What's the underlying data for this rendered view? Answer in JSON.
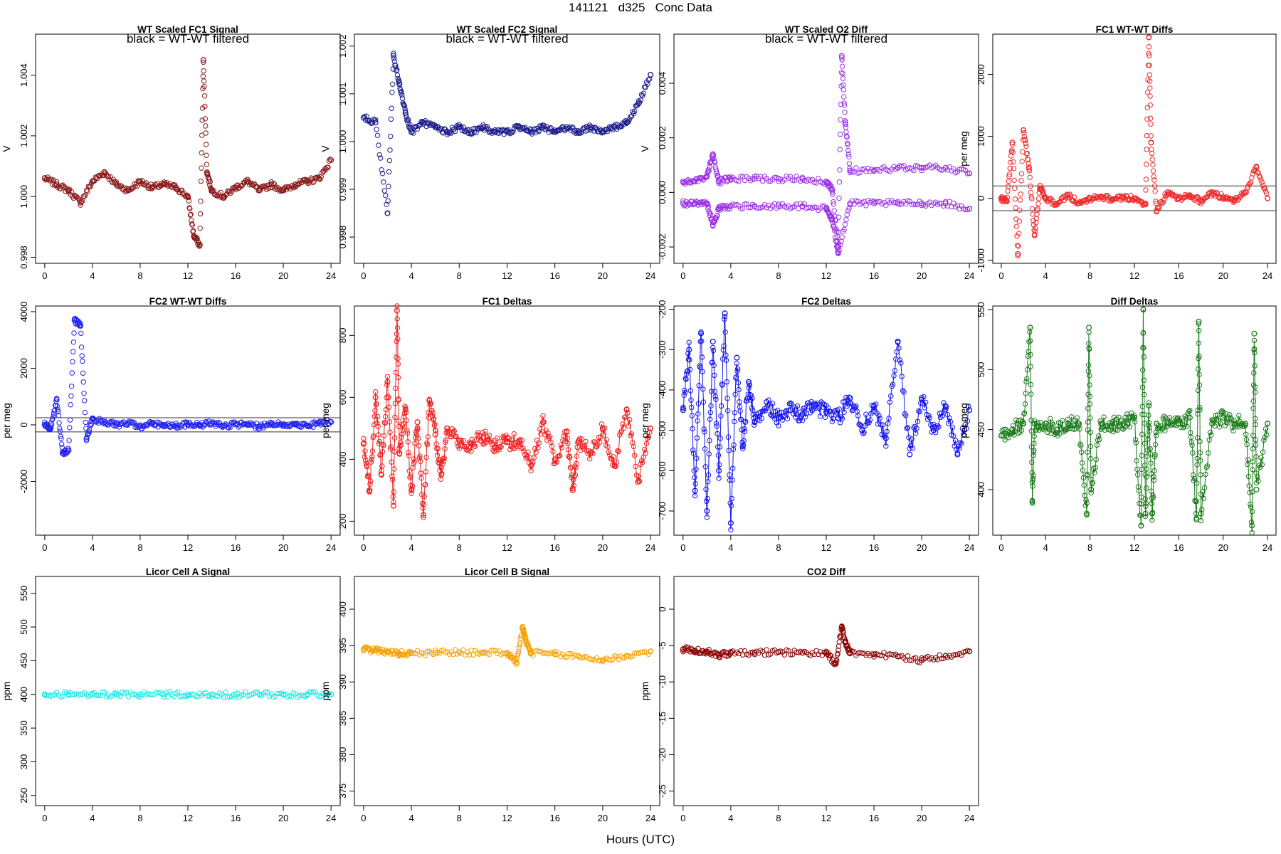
{
  "figure": {
    "title": "141121   d325   Conc Data",
    "xlabel": "Hours (UTC)"
  },
  "chart_data": [
    {
      "id": "wt-fc1",
      "type": "scatter",
      "title": "WT Scaled FC1 Signal",
      "annotation": "black = WT-WT filtered",
      "xlabel": "",
      "ylabel": "V",
      "xlim": [
        0,
        24
      ],
      "ylim": [
        0.9978,
        1.00535
      ],
      "xticks": [
        0,
        4,
        8,
        12,
        16,
        20,
        24
      ],
      "yticks": [
        0.998,
        1.0,
        1.002,
        1.004
      ],
      "ytick_labels": [
        "0.998",
        "1.000",
        "1.002",
        "1.004"
      ],
      "grid": false,
      "series": [
        {
          "color": "#8b1a1a",
          "style": "points",
          "x": [
            0,
            1,
            2,
            3,
            4,
            5,
            6,
            7,
            8,
            9,
            10,
            11,
            12,
            12.5,
            13,
            13.3,
            13.6,
            14,
            15,
            16,
            17,
            18,
            19,
            20,
            21,
            22,
            23,
            24
          ],
          "y": [
            1.0006,
            1.0004,
            1.0002,
            0.9998,
            1.0005,
            1.0008,
            1.0004,
            1.0002,
            1.0005,
            1.0003,
            1.0004,
            1.0003,
            1.0,
            0.9987,
            0.9984,
            1.0045,
            1.0008,
            1.0002,
            1.0,
            1.0003,
            1.0005,
            1.0002,
            1.0004,
            1.0002,
            1.0004,
            1.0005,
            1.0006,
            1.0012
          ]
        }
      ]
    },
    {
      "id": "wt-fc2",
      "type": "scatter",
      "title": "WT Scaled FC2 Signal",
      "annotation": "black = WT-WT filtered",
      "xlabel": "",
      "ylabel": "V",
      "xlim": [
        0,
        24
      ],
      "ylim": [
        0.99745,
        1.00225
      ],
      "xticks": [
        0,
        4,
        8,
        12,
        16,
        20,
        24
      ],
      "yticks": [
        0.998,
        0.999,
        1.0,
        1.001,
        1.002
      ],
      "ytick_labels": [
        "0.998",
        "0.999",
        "1.000",
        "1.001",
        "1.002"
      ],
      "grid": false,
      "series": [
        {
          "color": "#1c1c8c",
          "style": "points",
          "x": [
            0,
            1,
            2,
            2.5,
            3,
            3.5,
            4,
            5,
            6,
            7,
            8,
            9,
            10,
            11,
            12,
            13,
            14,
            15,
            16,
            17,
            18,
            19,
            20,
            21,
            22,
            23,
            24
          ],
          "y": [
            1.0005,
            1.0004,
            0.9985,
            1.0018,
            1.0012,
            1.0006,
            1.0002,
            1.0004,
            1.0003,
            1.0002,
            1.0003,
            1.0002,
            1.0003,
            1.0002,
            1.0002,
            1.0003,
            1.0002,
            1.0003,
            1.0002,
            1.0003,
            1.0002,
            1.0003,
            1.0002,
            1.0003,
            1.0004,
            1.0008,
            1.0014
          ]
        }
      ]
    },
    {
      "id": "wt-o2-diff",
      "type": "scatter",
      "title": "WT Scaled O2 Diff",
      "annotation": "black = WT-WT filtered",
      "xlabel": "",
      "ylabel": "V",
      "xlim": [
        0,
        24
      ],
      "ylim": [
        -0.0026,
        0.0058
      ],
      "xticks": [
        0,
        4,
        8,
        12,
        16,
        20,
        24
      ],
      "yticks": [
        -0.002,
        0.0,
        0.002,
        0.004
      ],
      "ytick_labels": [
        "-0.002",
        "0.000",
        "0.002",
        "0.004"
      ],
      "grid": false,
      "series": [
        {
          "name": "",
          "color": "#9b30e6",
          "style": "points",
          "x": [
            0,
            1,
            2,
            2.5,
            3,
            4,
            6,
            8,
            10,
            12,
            12.5,
            13,
            13.3,
            13.6,
            14,
            16,
            18,
            20,
            22,
            24
          ],
          "y": [
            0.0004,
            0.0004,
            0.0006,
            0.0014,
            0.0004,
            0.0005,
            0.0005,
            0.0005,
            0.0005,
            0.0004,
            0.0001,
            -0.002,
            0.005,
            0.0025,
            0.0008,
            0.0008,
            0.0009,
            0.0009,
            0.0009,
            0.0007
          ]
        },
        {
          "name": "",
          "color": "#9b30e6",
          "style": "points",
          "x": [
            0,
            1,
            2,
            2.5,
            3,
            4,
            6,
            8,
            10,
            12,
            12.5,
            13,
            14,
            16,
            18,
            20,
            22,
            24
          ],
          "y": [
            -0.0004,
            -0.0004,
            -0.0004,
            -0.0012,
            -0.0006,
            -0.0005,
            -0.0005,
            -0.0005,
            -0.0005,
            -0.0006,
            -0.001,
            -0.0022,
            -0.0004,
            -0.0004,
            -0.0004,
            -0.0004,
            -0.0004,
            -0.0006
          ]
        }
      ]
    },
    {
      "id": "fc1-wtwt",
      "type": "scatter",
      "title": "FC1 WT-WT Diffs",
      "xlabel": "",
      "ylabel": "per meg",
      "xlim": [
        0,
        24
      ],
      "ylim": [
        -1050,
        2650
      ],
      "xticks": [
        0,
        4,
        8,
        12,
        16,
        20,
        24
      ],
      "yticks": [
        -1000,
        0,
        1000,
        2000
      ],
      "ytick_labels": [
        "-1000",
        "0",
        "1000",
        "2000"
      ],
      "grid": false,
      "hlines": [
        200,
        -200
      ],
      "series": [
        {
          "color": "#ee2a2a",
          "style": "points",
          "x": [
            0,
            0.5,
            1,
            1.5,
            2,
            2.5,
            3,
            3.5,
            4,
            5,
            6,
            7,
            8,
            9,
            10,
            11,
            12,
            13,
            13.3,
            13.5,
            14,
            15,
            16,
            17,
            18,
            19,
            20,
            21,
            22,
            23,
            24
          ],
          "y": [
            0,
            -50,
            900,
            -900,
            1100,
            500,
            -600,
            200,
            0,
            -100,
            50,
            -80,
            0,
            30,
            -20,
            10,
            0,
            -100,
            2600,
            900,
            -200,
            100,
            0,
            50,
            -50,
            80,
            20,
            -30,
            100,
            500,
            0
          ]
        }
      ]
    },
    {
      "id": "fc2-wtwt",
      "type": "scatter",
      "title": "FC2 WT-WT Diffs",
      "xlabel": "",
      "ylabel": "per meg",
      "xlim": [
        0,
        24
      ],
      "ylim": [
        -3900,
        4200
      ],
      "xticks": [
        0,
        4,
        8,
        12,
        16,
        20,
        24
      ],
      "yticks": [
        -2000,
        0,
        2000,
        4000
      ],
      "ytick_labels": [
        "-2000",
        "0",
        "2000",
        "4000"
      ],
      "grid": false,
      "hlines": [
        250,
        -250
      ],
      "series": [
        {
          "color": "#2222ee",
          "style": "points",
          "x": [
            0,
            0.5,
            1,
            1.5,
            2,
            2.5,
            3,
            3.5,
            4,
            5,
            6,
            7,
            8,
            9,
            10,
            11,
            12,
            13,
            14,
            15,
            16,
            17,
            18,
            19,
            20,
            21,
            22,
            23,
            24
          ],
          "y": [
            0,
            -100,
            900,
            -1000,
            -900,
            3700,
            3500,
            -500,
            200,
            100,
            0,
            50,
            -50,
            30,
            0,
            -20,
            10,
            0,
            50,
            -30,
            20,
            0,
            -50,
            40,
            0,
            30,
            -20,
            50,
            100
          ]
        }
      ]
    },
    {
      "id": "fc1-deltas",
      "type": "line",
      "title": "FC1 Deltas",
      "xlabel": "",
      "ylabel": "per meg",
      "xlim": [
        0,
        24
      ],
      "ylim": [
        155,
        895
      ],
      "xticks": [
        0,
        4,
        8,
        12,
        16,
        20,
        24
      ],
      "yticks": [
        200,
        400,
        600,
        800
      ],
      "ytick_labels": [
        "200",
        "400",
        "600",
        "800"
      ],
      "grid": false,
      "series": [
        {
          "color": "#ee2020",
          "style": "line+points",
          "x": [
            0,
            0.5,
            1,
            1.5,
            2,
            2.5,
            2.8,
            3,
            3.5,
            4,
            4.5,
            5,
            5.5,
            6,
            6.5,
            7,
            8,
            9,
            10,
            11,
            12,
            13,
            14,
            15,
            16,
            17,
            17.5,
            18,
            19,
            20,
            21,
            22,
            23,
            24
          ],
          "y": [
            450,
            300,
            600,
            350,
            650,
            250,
            880,
            420,
            560,
            300,
            520,
            220,
            590,
            480,
            350,
            500,
            460,
            450,
            470,
            440,
            455,
            460,
            380,
            520,
            400,
            490,
            300,
            460,
            420,
            500,
            380,
            560,
            330,
            500
          ]
        }
      ]
    },
    {
      "id": "fc2-deltas",
      "type": "line",
      "title": "FC2 Deltas",
      "xlabel": "",
      "ylabel": "per meg",
      "xlim": [
        0,
        24
      ],
      "ylim": [
        -760,
        -192
      ],
      "xticks": [
        0,
        4,
        8,
        12,
        16,
        20,
        24
      ],
      "yticks": [
        -700,
        -600,
        -500,
        -400,
        -300,
        -200
      ],
      "ytick_labels": [
        "-700",
        "-600",
        "-500",
        "-400",
        "-300",
        "-200"
      ],
      "grid": false,
      "series": [
        {
          "color": "#1414ee",
          "style": "line+points",
          "x": [
            0,
            0.5,
            1,
            1.5,
            2,
            2.5,
            3,
            3.5,
            4,
            4.5,
            5,
            5.5,
            6,
            7,
            8,
            9,
            10,
            11,
            12,
            13,
            14,
            15,
            16,
            17,
            18,
            19,
            20,
            21,
            22,
            23,
            24
          ],
          "y": [
            -450,
            -300,
            -650,
            -260,
            -700,
            -280,
            -600,
            -210,
            -730,
            -320,
            -540,
            -380,
            -480,
            -430,
            -470,
            -450,
            -460,
            -440,
            -455,
            -470,
            -420,
            -500,
            -440,
            -520,
            -280,
            -560,
            -420,
            -500,
            -440,
            -560,
            -450
          ]
        }
      ]
    },
    {
      "id": "diff-deltas",
      "type": "line",
      "title": "Diff Deltas",
      "xlabel": "",
      "ylabel": "per meg",
      "xlim": [
        0,
        24
      ],
      "ylim": [
        362,
        553
      ],
      "xticks": [
        0,
        4,
        8,
        12,
        16,
        20,
        24
      ],
      "yticks": [
        400,
        450,
        500,
        550
      ],
      "ytick_labels": [
        "400",
        "450",
        "500",
        "550"
      ],
      "grid": false,
      "series": [
        {
          "color": "#1a7a1a",
          "style": "line+points",
          "x": [
            0,
            1,
            2,
            2.6,
            2.8,
            3,
            4,
            5,
            6,
            7,
            7.7,
            7.9,
            8.1,
            9,
            10,
            11,
            12,
            12.6,
            12.8,
            13,
            13.3,
            13.6,
            14,
            15,
            16,
            17,
            17.6,
            17.8,
            18,
            19,
            20,
            21,
            22,
            22.6,
            22.8,
            23,
            24
          ],
          "y": [
            445,
            450,
            455,
            535,
            390,
            455,
            455,
            450,
            455,
            455,
            380,
            535,
            400,
            455,
            455,
            455,
            460,
            370,
            550,
            380,
            470,
            380,
            455,
            455,
            455,
            460,
            375,
            540,
            380,
            455,
            460,
            455,
            455,
            370,
            530,
            400,
            455
          ]
        }
      ]
    },
    {
      "id": "licor-a",
      "type": "scatter",
      "title": "Licor Cell A Signal",
      "xlabel": "",
      "ylabel": "ppm",
      "xlim": [
        0,
        24
      ],
      "ylim": [
        235,
        575
      ],
      "xticks": [
        0,
        4,
        8,
        12,
        16,
        20,
        24
      ],
      "yticks": [
        250,
        300,
        350,
        400,
        450,
        500,
        550
      ],
      "ytick_labels": [
        "250",
        "300",
        "350",
        "400",
        "450",
        "500",
        "550"
      ],
      "grid": false,
      "series": [
        {
          "color": "#1ee6e6",
          "style": "points",
          "x": [
            0,
            2,
            4,
            6,
            8,
            10,
            12,
            14,
            16,
            18,
            20,
            22,
            24
          ],
          "y": [
            400,
            400,
            400,
            400,
            400,
            400,
            400,
            400,
            400,
            400,
            400,
            400,
            400
          ]
        }
      ]
    },
    {
      "id": "licor-b",
      "type": "scatter",
      "title": "Licor Cell B Signal",
      "xlabel": "",
      "ylabel": "ppm",
      "xlim": [
        0,
        24
      ],
      "ylim": [
        373,
        404.5
      ],
      "xticks": [
        0,
        4,
        8,
        12,
        16,
        20,
        24
      ],
      "yticks": [
        375,
        380,
        385,
        390,
        395,
        400
      ],
      "ytick_labels": [
        "375",
        "380",
        "385",
        "390",
        "395",
        "400"
      ],
      "grid": false,
      "series": [
        {
          "color": "#f5a000",
          "style": "points",
          "x": [
            0,
            1,
            2,
            3,
            4,
            6,
            8,
            10,
            12,
            12.8,
            13.3,
            13.6,
            14,
            16,
            18,
            20,
            22,
            24
          ],
          "y": [
            394.5,
            394.3,
            394.2,
            393.9,
            394.0,
            394.0,
            394.1,
            394.0,
            394.0,
            392.5,
            397.5,
            395.5,
            394.0,
            393.8,
            393.5,
            393.0,
            393.6,
            394.2
          ]
        }
      ]
    },
    {
      "id": "co2-diff",
      "type": "scatter",
      "title": "CO2 Diff",
      "xlabel": "",
      "ylabel": "ppm",
      "xlim": [
        0,
        24
      ],
      "ylim": [
        -27,
        4.5
      ],
      "xticks": [
        0,
        4,
        8,
        12,
        16,
        20,
        24
      ],
      "yticks": [
        -25,
        -20,
        -15,
        -10,
        -5,
        0
      ],
      "ytick_labels": [
        "-25",
        "-20",
        "-15",
        "-10",
        "-5",
        "0"
      ],
      "grid": false,
      "series": [
        {
          "color": "#8b0000",
          "style": "points",
          "x": [
            0,
            1,
            2,
            3,
            4,
            6,
            8,
            10,
            12,
            12.8,
            13.3,
            13.6,
            14,
            16,
            18,
            20,
            22,
            24
          ],
          "y": [
            -5.5,
            -5.7,
            -5.8,
            -6.3,
            -6.0,
            -6.0,
            -5.9,
            -6.0,
            -6.0,
            -7.5,
            -2.5,
            -4.5,
            -6.0,
            -6.2,
            -6.5,
            -7.0,
            -6.4,
            -5.8
          ]
        }
      ]
    }
  ]
}
